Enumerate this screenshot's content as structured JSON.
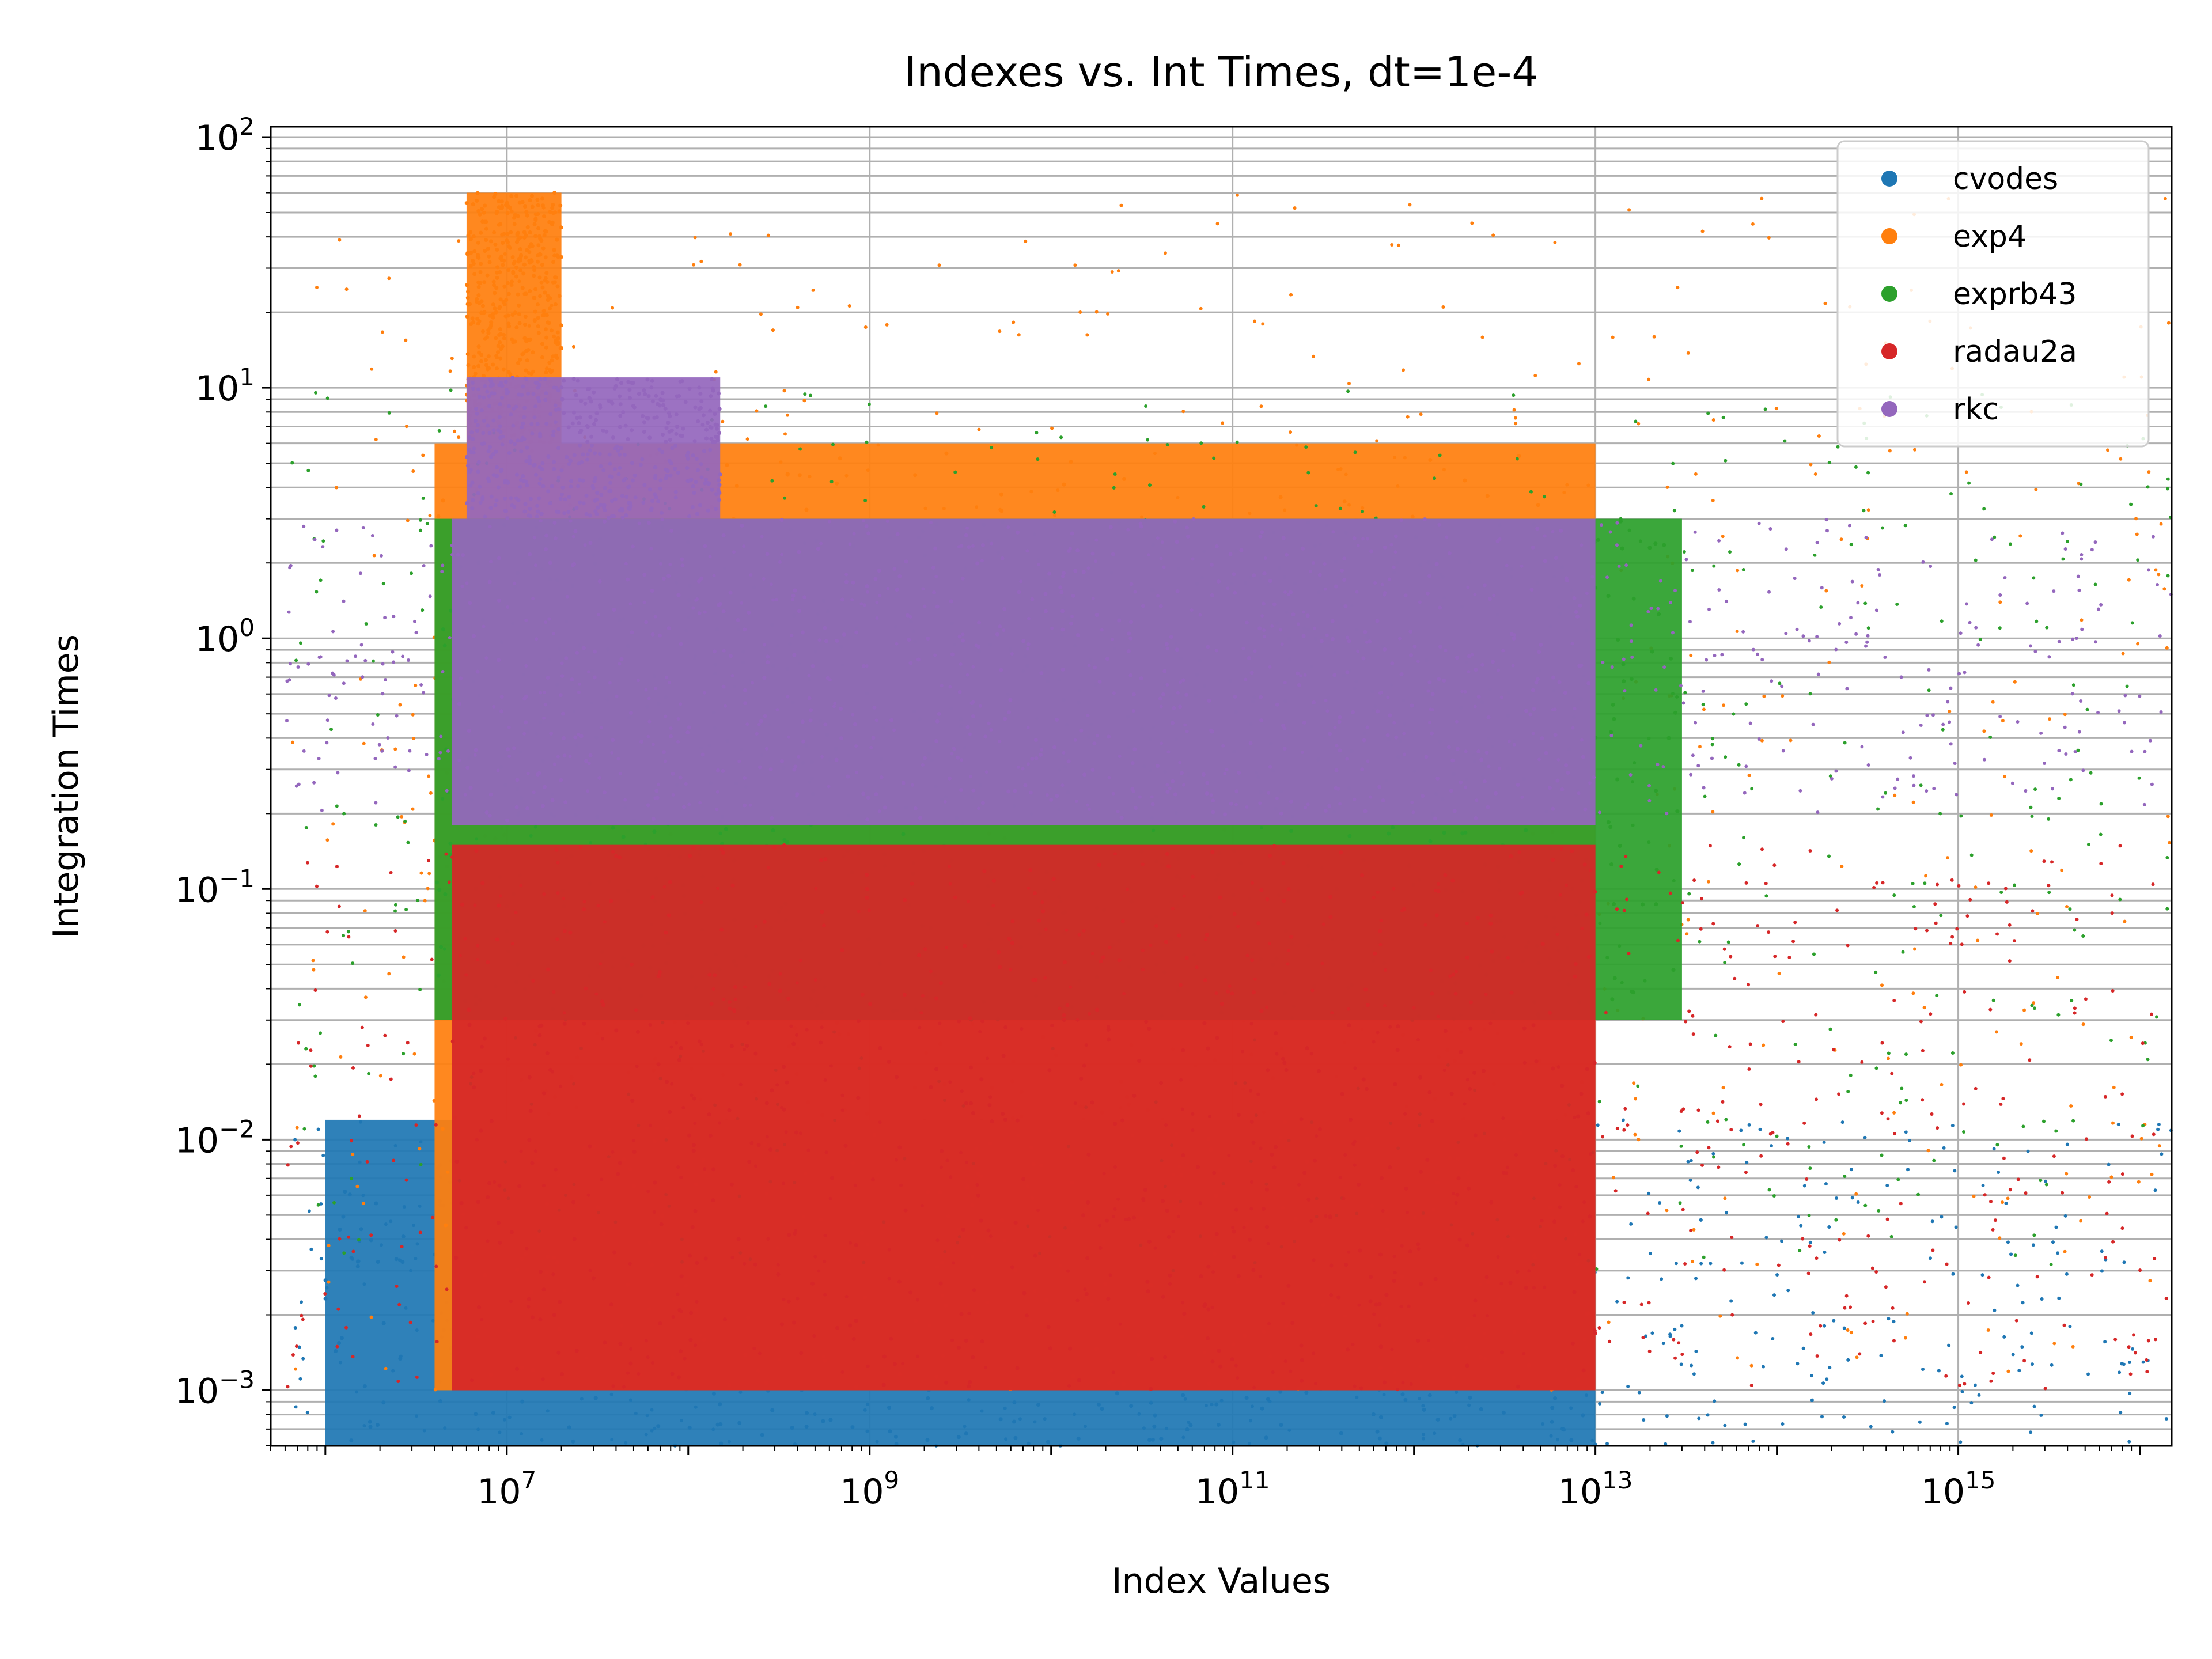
{
  "chart_data": {
    "type": "scatter",
    "title": "Indexes vs. Int Times, dt=1e-4",
    "xlabel": "Index Values",
    "ylabel": "Integration Times",
    "xscale": "log",
    "yscale": "log",
    "xlim": [
      500000,
      15000000000000000
    ],
    "ylim": [
      0.0006,
      110
    ],
    "grid": true,
    "legend_position": "top-right",
    "x_tick_labels": [
      {
        "value": 10000000,
        "base": "10",
        "exp": "7"
      },
      {
        "value": 1000000000,
        "base": "10",
        "exp": "9"
      },
      {
        "value": 100000000000,
        "base": "10",
        "exp": "11"
      },
      {
        "value": 10000000000000,
        "base": "10",
        "exp": "13"
      },
      {
        "value": 1000000000000000,
        "base": "10",
        "exp": "15"
      }
    ],
    "y_tick_labels": [
      {
        "value": 100,
        "base": "10",
        "exp": "2"
      },
      {
        "value": 10,
        "base": "10",
        "exp": "1"
      },
      {
        "value": 1,
        "base": "10",
        "exp": "0"
      },
      {
        "value": 0.1,
        "base": "10",
        "exp": "−1"
      },
      {
        "value": 0.01,
        "base": "10",
        "exp": "−2"
      },
      {
        "value": 0.001,
        "base": "10",
        "exp": "−3"
      }
    ],
    "series": [
      {
        "name": "cvodes",
        "color": "#1f77b4",
        "dense_bands": [
          [
            1000000,
            10000000000000,
            0.0006,
            0.012
          ]
        ],
        "sparse_range": [
          [
            600000,
            15000000000000000,
            0.0006,
            0.012
          ]
        ]
      },
      {
        "name": "exp4",
        "color": "#ff7f0e",
        "dense_bands": [
          [
            4000000,
            10000000000000,
            0.001,
            6
          ],
          [
            6000000,
            20000000,
            6,
            60
          ]
        ],
        "sparse_range": [
          [
            600000,
            15000000000000000,
            0.001,
            60
          ]
        ]
      },
      {
        "name": "exprb43",
        "color": "#2ca02c",
        "dense_bands": [
          [
            4000000,
            30000000000000,
            0.03,
            3
          ]
        ],
        "sparse_range": [
          [
            600000,
            15000000000000000,
            0.003,
            10
          ]
        ]
      },
      {
        "name": "radau2a",
        "color": "#d62728",
        "dense_bands": [
          [
            5000000,
            10000000000000,
            0.001,
            0.15
          ]
        ],
        "sparse_range": [
          [
            600000,
            15000000000000000,
            0.001,
            0.15
          ]
        ]
      },
      {
        "name": "rkc",
        "color": "#9467bd",
        "dense_bands": [
          [
            5000000,
            10000000000000,
            0.18,
            3
          ],
          [
            6000000,
            150000000,
            3,
            11
          ]
        ],
        "sparse_range": [
          [
            600000,
            15000000000000000,
            0.2,
            3
          ]
        ]
      }
    ]
  }
}
